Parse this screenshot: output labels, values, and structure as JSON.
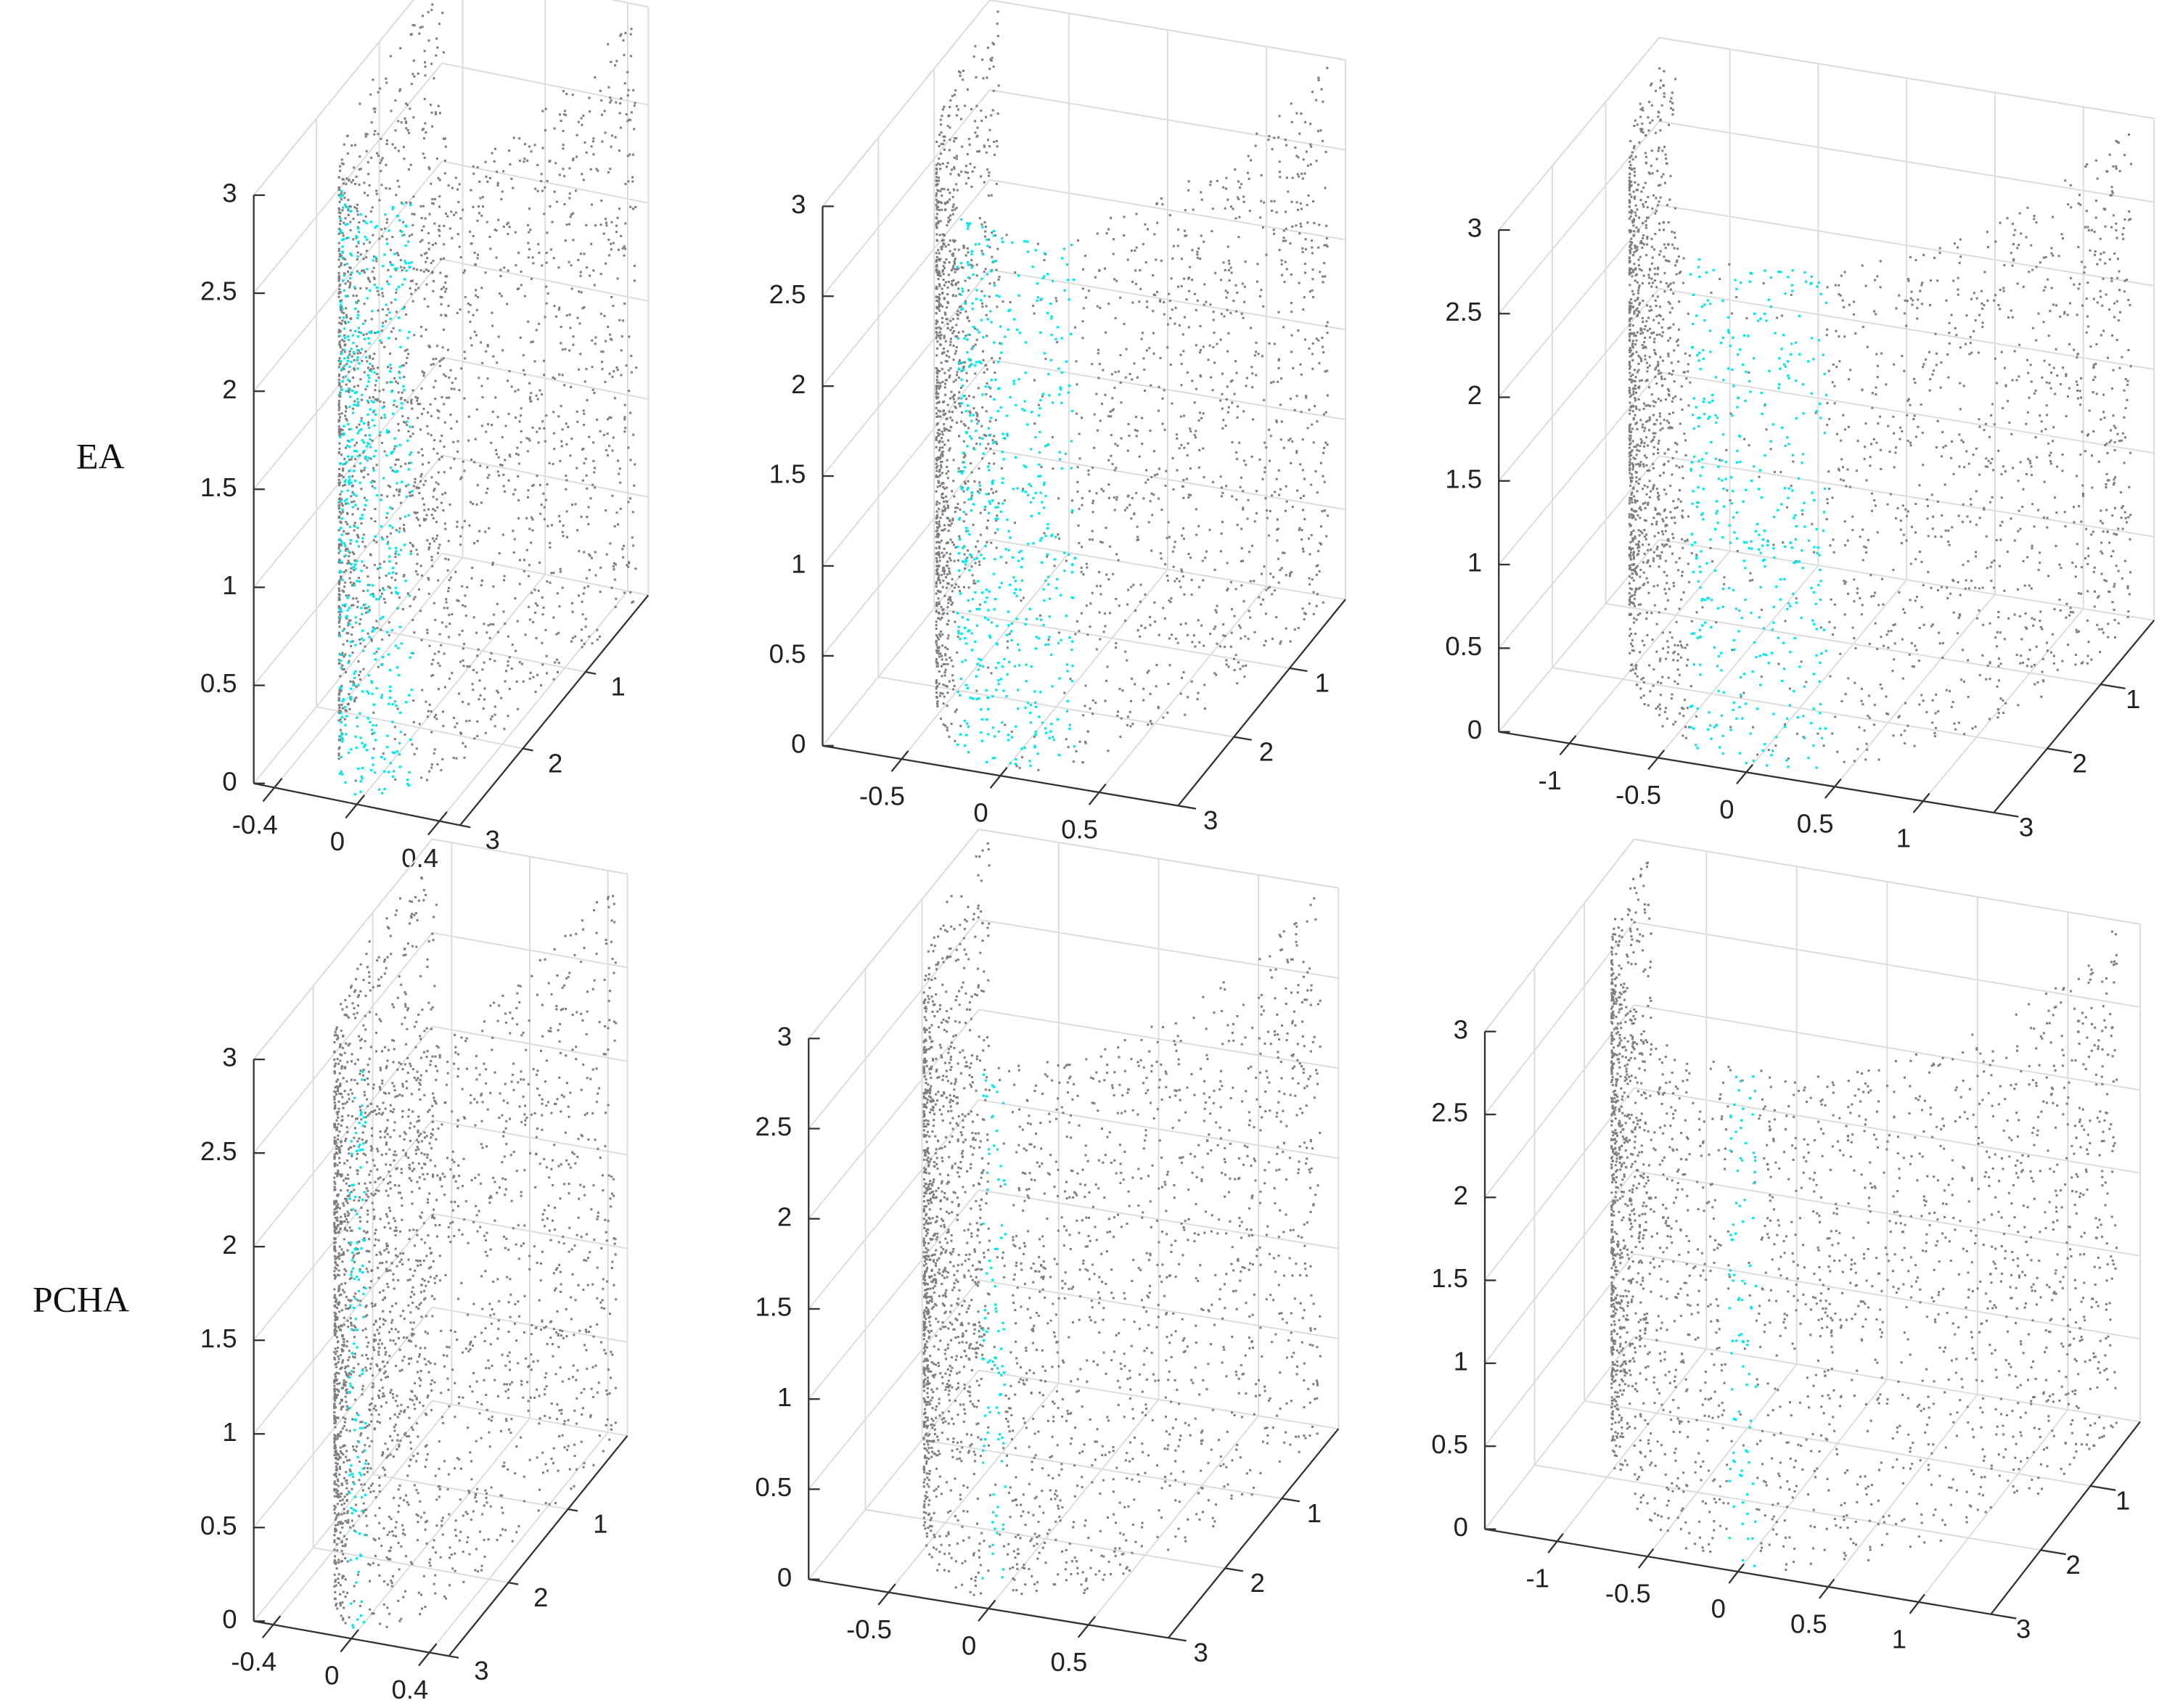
{
  "row_labels": [
    "EA",
    "PCHA"
  ],
  "chart_data": [
    {
      "type": "scatter3d",
      "color": "#7f7f7f",
      "highlight_color": "#00e8e8",
      "grid": true,
      "xlim": [
        -0.5,
        0.5
      ],
      "xticks": [
        -0.4,
        0,
        0.4
      ],
      "ylim": [
        0,
        3
      ],
      "yticks": [
        1,
        2,
        3
      ],
      "zlim": [
        0,
        3
      ],
      "zticks": [
        0,
        0.5,
        1,
        1.5,
        2,
        2.5,
        3
      ]
    },
    {
      "type": "scatter3d",
      "color": "#7f7f7f",
      "highlight_color": "#00e8e8",
      "grid": true,
      "xlim": [
        -0.9,
        0.9
      ],
      "xticks": [
        -0.5,
        0,
        0.5
      ],
      "ylim": [
        0,
        3
      ],
      "yticks": [
        1,
        2,
        3
      ],
      "zlim": [
        0,
        3
      ],
      "zticks": [
        0,
        0.5,
        1,
        1.5,
        2,
        2.5,
        3
      ]
    },
    {
      "type": "scatter3d",
      "color": "#7f7f7f",
      "highlight_color": "#00e8e8",
      "grid": true,
      "xlim": [
        -1.4,
        1.4
      ],
      "xticks": [
        -1,
        -0.5,
        0,
        0.5,
        1
      ],
      "ylim": [
        0,
        3
      ],
      "yticks": [
        1,
        2,
        3
      ],
      "zlim": [
        0,
        3
      ],
      "zticks": [
        0,
        0.5,
        1,
        1.5,
        2,
        2.5,
        3
      ]
    },
    {
      "type": "scatter3d",
      "color": "#7f7f7f",
      "highlight_color": "#00e8e8",
      "grid": true,
      "xlim": [
        -0.5,
        0.5
      ],
      "xticks": [
        -0.4,
        0,
        0.4
      ],
      "ylim": [
        0,
        3
      ],
      "yticks": [
        1,
        2,
        3
      ],
      "zlim": [
        0,
        3
      ],
      "zticks": [
        0,
        0.5,
        1,
        1.5,
        2,
        2.5,
        3
      ]
    },
    {
      "type": "scatter3d",
      "color": "#7f7f7f",
      "highlight_color": "#00e8e8",
      "grid": true,
      "xlim": [
        -0.9,
        0.9
      ],
      "xticks": [
        -0.5,
        0,
        0.5
      ],
      "ylim": [
        0,
        3
      ],
      "yticks": [
        1,
        2,
        3
      ],
      "zlim": [
        0,
        3
      ],
      "zticks": [
        0,
        0.5,
        1,
        1.5,
        2,
        2.5,
        3
      ]
    },
    {
      "type": "scatter3d",
      "color": "#7f7f7f",
      "highlight_color": "#00e8e8",
      "grid": true,
      "xlim": [
        -1.4,
        1.4
      ],
      "xticks": [
        -1,
        -0.5,
        0,
        0.5,
        1
      ],
      "ylim": [
        0,
        3
      ],
      "yticks": [
        1,
        2,
        3
      ],
      "zlim": [
        0,
        3
      ],
      "zticks": [
        0,
        0.5,
        1,
        1.5,
        2,
        2.5,
        3
      ]
    }
  ]
}
